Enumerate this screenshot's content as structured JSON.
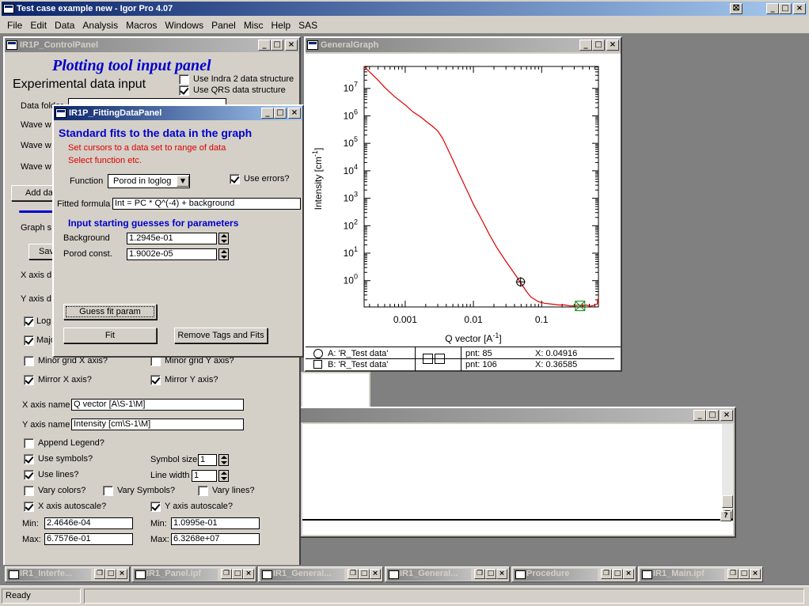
{
  "app": {
    "title": "Test case example new - Igor Pro 4.07",
    "menu": [
      "File",
      "Edit",
      "Data",
      "Analysis",
      "Macros",
      "Windows",
      "Panel",
      "Misc",
      "Help",
      "SAS"
    ],
    "status": "Ready"
  },
  "control_panel": {
    "title": "IR1P_ControlPanel",
    "heading": "Plotting tool input panel",
    "section": "Experimental data input",
    "use_indra": "Use Indra 2 data structure",
    "use_qrs": "Use QRS data structure",
    "data_folder_label": "Data folder",
    "wave_label": "Wave w",
    "add_data": "Add da",
    "graph_label": "Graph s",
    "save_label": "Sav",
    "xaxis_label": "X axis d",
    "yaxis_label": "Y axis d",
    "log_label": "Log",
    "major_label": "Majo",
    "minor_x": "Minor grid X axis?",
    "minor_y": "Minor grid Y axis?",
    "mirror_x": "Mirror X axis?",
    "mirror_y": "Mirror Y axis?",
    "x_axis_name_label": "X axis name",
    "x_axis_name": "Q vector [A\\S-1\\M]",
    "y_axis_name_label": "Y axis name",
    "y_axis_name": "Intensity [cm\\S-1\\M]",
    "append_legend": "Append Legend?",
    "use_symbols": "Use symbols?",
    "symbol_size_label": "Symbol size",
    "symbol_size": "1",
    "use_lines": "Use lines?",
    "line_width_label": "Line width",
    "line_width": "1",
    "vary_colors": "Vary colors?",
    "vary_symbols": "Vary Symbols?",
    "vary_lines": "Vary lines?",
    "x_autoscale": "X axis autoscale?",
    "y_autoscale": "Y axis autoscale?",
    "min_label": "Min:",
    "max_label": "Max:",
    "x_min": "2.4646e-04",
    "x_max": "6.7576e-01",
    "y_min": "1.0995e-01",
    "y_max": "6.3268e+07"
  },
  "fitting_panel": {
    "title": "IR1P_FittingDataPanel",
    "heading": "Standard fits to the data in the graph",
    "hint1": "Set cursors to a data set to range of data",
    "hint2": "Select function etc.",
    "function_label": "Function",
    "function_value": "Porod in loglog",
    "use_errors": "Use errors?",
    "formula_label": "Fitted formula",
    "formula": "Int = PC * Q^(-4) + background",
    "guess_heading": "Input starting guesses for parameters",
    "background_label": "Background",
    "background_value": "1.2945e-01",
    "porod_label": "Porod const.",
    "porod_value": "1.9002e-05",
    "guess_button": "Guess fit param",
    "fit_button": "Fit",
    "remove_button": "Remove Tags and Fits"
  },
  "graph": {
    "title": "GeneralGraph",
    "cursor_a_label": "A: 'R_Test data'",
    "cursor_b_label": "B: 'R_Test data'",
    "cursor_a_pnt": "pnt: 85",
    "cursor_b_pnt": "pnt: 106",
    "cursor_a_x": "X: 0.04916",
    "cursor_b_x": "X: 0.36585"
  },
  "chart_data": {
    "type": "line",
    "xlabel": "Q vector [A-1]",
    "ylabel": "Intensity [cm-1]",
    "x_scale": "log",
    "y_scale": "log",
    "xlim": [
      0.00025,
      0.68
    ],
    "ylim": [
      0.11,
      63000000
    ],
    "xticks": [
      "0.001",
      "0.01",
      "0.1"
    ],
    "yticks": [
      "10^0",
      "10^1",
      "10^2",
      "10^3",
      "10^4",
      "10^5",
      "10^6",
      "10^7"
    ],
    "series": [
      {
        "color": "#dd0000",
        "x": [
          0.00025,
          0.0003,
          0.0004,
          0.0005,
          0.0007,
          0.001,
          0.0013,
          0.0017,
          0.002,
          0.0025,
          0.003,
          0.0035,
          0.004,
          0.005,
          0.006,
          0.008,
          0.01,
          0.013,
          0.017,
          0.022,
          0.03,
          0.04,
          0.05,
          0.06,
          0.07,
          0.09,
          0.11,
          0.14,
          0.18,
          0.22,
          0.26,
          0.3,
          0.35,
          0.4,
          0.45,
          0.5,
          0.55,
          0.6,
          0.65,
          0.68
        ],
        "y": [
          63000000,
          40000000,
          20000000,
          11000000,
          5000000,
          2500000,
          1400000,
          900000,
          650000,
          420000,
          280000,
          160000,
          80000,
          25000,
          9000,
          2000,
          600,
          180,
          50,
          16,
          5,
          1.8,
          0.8,
          0.4,
          0.25,
          0.17,
          0.15,
          0.14,
          0.13,
          0.13,
          0.12,
          0.12,
          0.13,
          0.12,
          0.13,
          0.12,
          0.12,
          0.13,
          0.14,
          0.25
        ]
      }
    ],
    "cursor_a": {
      "x": 0.04916,
      "y": 0.9
    },
    "cursor_b": {
      "x": 0.36585,
      "y": 0.12
    }
  },
  "taskbar": [
    {
      "label": "IR1_Interfe..."
    },
    {
      "label": "IR1_Panel.ipf"
    },
    {
      "label": "IR1_General..."
    },
    {
      "label": "IR1_General..."
    },
    {
      "label": "Procedure"
    },
    {
      "label": "IR1_Main.ipf"
    }
  ],
  "icons": {
    "minimize": "_",
    "maximize": "□",
    "close": "×",
    "restore": "❐",
    "dropdown": "▼"
  }
}
